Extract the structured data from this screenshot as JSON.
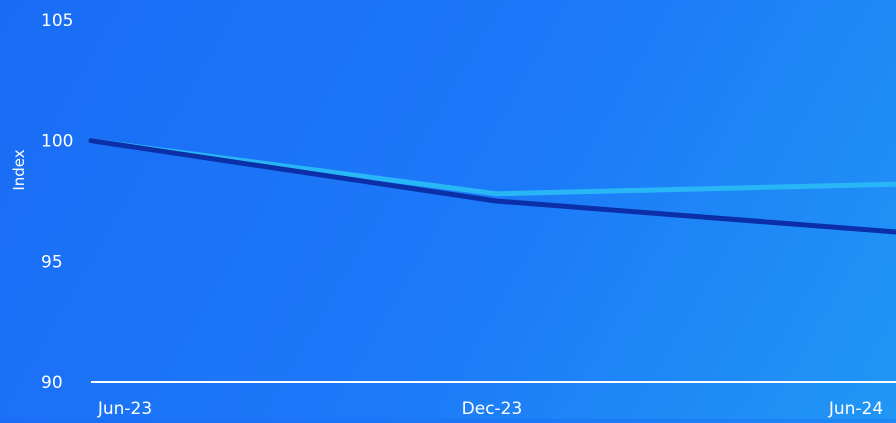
{
  "chart_data": {
    "type": "line",
    "title": "",
    "xlabel": "",
    "ylabel": "Index",
    "categories": [
      "Jun-23",
      "Dec-23",
      "Jun-24"
    ],
    "ylim": [
      90,
      105
    ],
    "yticks": [
      "90",
      "95",
      "100",
      "105"
    ],
    "grid": false,
    "series": [
      {
        "values": [
          100,
          97.8,
          98.2
        ],
        "color": "#29b6f6"
      },
      {
        "values": [
          100,
          97.5,
          96.2
        ],
        "color": "#0a2fa8"
      }
    ]
  }
}
